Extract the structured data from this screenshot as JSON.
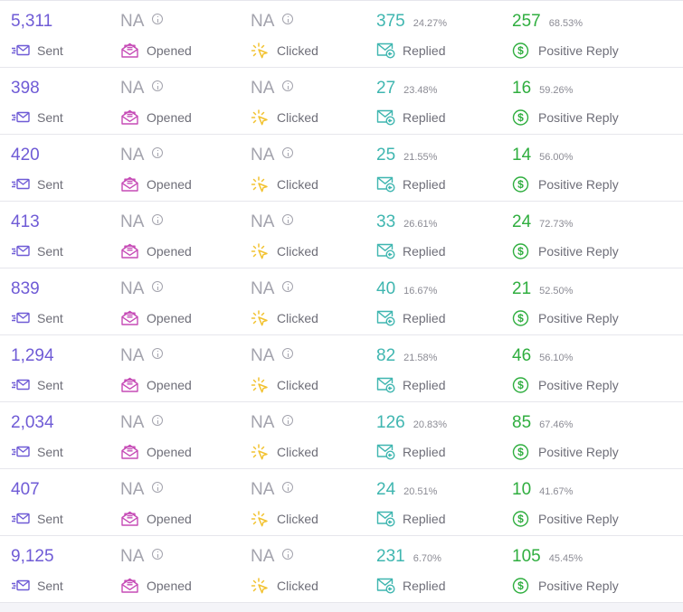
{
  "labels": {
    "sent": "Sent",
    "opened": "Opened",
    "clicked": "Clicked",
    "replied": "Replied",
    "positive": "Positive Reply"
  },
  "colors": {
    "sent": "#6f5bd6",
    "opened": "#c64bb6",
    "clicked": "#f2c230",
    "replied": "#3fb6b0",
    "positive": "#2fae3f",
    "na": "#a3a3ad"
  },
  "icons": {
    "sent": "send-envelope-icon",
    "opened": "open-envelope-icon",
    "clicked": "click-sparkle-icon",
    "replied": "reply-envelope-icon",
    "positive": "dollar-circle-icon",
    "info": "info-icon"
  },
  "rows": [
    {
      "sent": "5,311",
      "opened": "NA",
      "clicked": "NA",
      "replied": "375",
      "replied_pct": "24.27%",
      "positive": "257",
      "positive_pct": "68.53%"
    },
    {
      "sent": "398",
      "opened": "NA",
      "clicked": "NA",
      "replied": "27",
      "replied_pct": "23.48%",
      "positive": "16",
      "positive_pct": "59.26%"
    },
    {
      "sent": "420",
      "opened": "NA",
      "clicked": "NA",
      "replied": "25",
      "replied_pct": "21.55%",
      "positive": "14",
      "positive_pct": "56.00%"
    },
    {
      "sent": "413",
      "opened": "NA",
      "clicked": "NA",
      "replied": "33",
      "replied_pct": "26.61%",
      "positive": "24",
      "positive_pct": "72.73%"
    },
    {
      "sent": "839",
      "opened": "NA",
      "clicked": "NA",
      "replied": "40",
      "replied_pct": "16.67%",
      "positive": "21",
      "positive_pct": "52.50%"
    },
    {
      "sent": "1,294",
      "opened": "NA",
      "clicked": "NA",
      "replied": "82",
      "replied_pct": "21.58%",
      "positive": "46",
      "positive_pct": "56.10%"
    },
    {
      "sent": "2,034",
      "opened": "NA",
      "clicked": "NA",
      "replied": "126",
      "replied_pct": "20.83%",
      "positive": "85",
      "positive_pct": "67.46%"
    },
    {
      "sent": "407",
      "opened": "NA",
      "clicked": "NA",
      "replied": "24",
      "replied_pct": "20.51%",
      "positive": "10",
      "positive_pct": "41.67%"
    },
    {
      "sent": "9,125",
      "opened": "NA",
      "clicked": "NA",
      "replied": "231",
      "replied_pct": "6.70%",
      "positive": "105",
      "positive_pct": "45.45%"
    }
  ]
}
